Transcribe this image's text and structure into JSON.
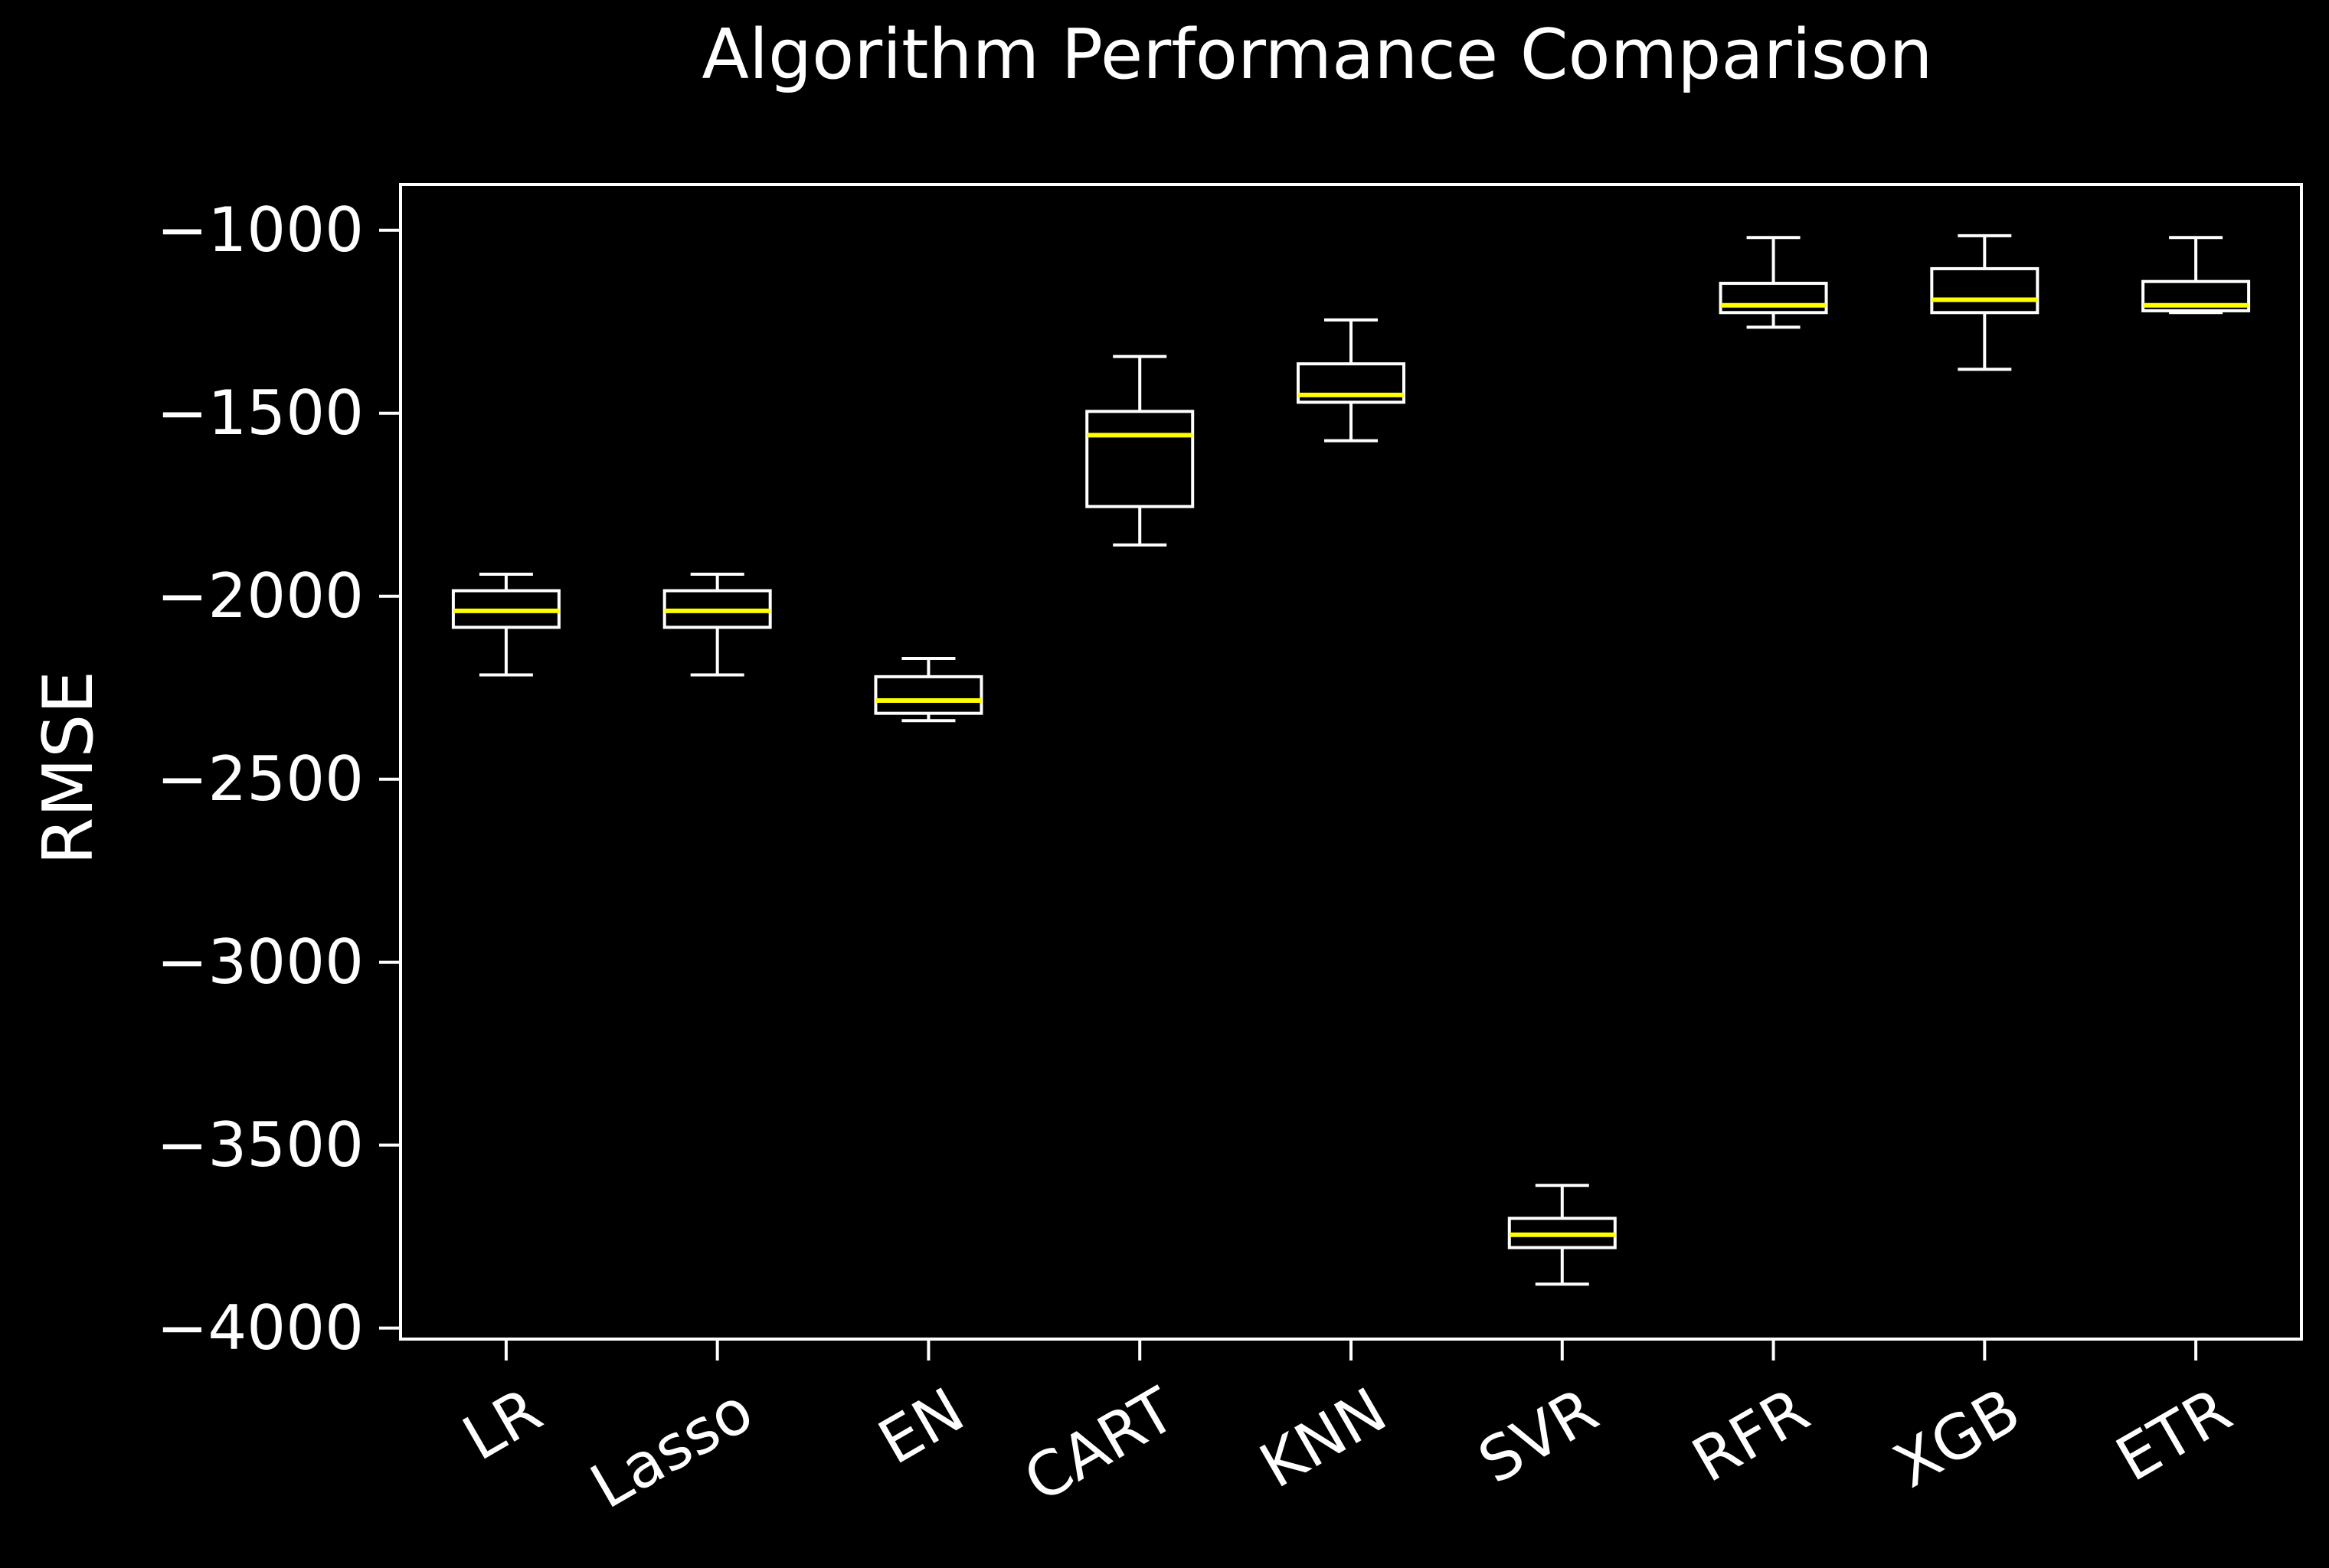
{
  "chart_data": {
    "type": "box",
    "title": "Algorithm Performance Comparison",
    "xlabel": "",
    "ylabel": "RMSE",
    "ylim": [
      -4030,
      -875
    ],
    "yticks": [
      -1000,
      -1500,
      -2000,
      -2500,
      -3000,
      -3500,
      -4000
    ],
    "ytick_labels": [
      "−1000",
      "−1500",
      "−2000",
      "−2500",
      "−3000",
      "−3500",
      "−4000"
    ],
    "categories": [
      "LR",
      "Lasso",
      "EN",
      "CART",
      "KNN",
      "SVR",
      "RFR",
      "XGB",
      "ETR"
    ],
    "boxes": [
      {
        "whisker_low": -2215,
        "q1": -2085,
        "median": -2040,
        "q3": -1985,
        "whisker_high": -1940
      },
      {
        "whisker_low": -2215,
        "q1": -2085,
        "median": -2040,
        "q3": -1985,
        "whisker_high": -1940
      },
      {
        "whisker_low": -2340,
        "q1": -2320,
        "median": -2285,
        "q3": -2220,
        "whisker_high": -2170
      },
      {
        "whisker_low": -1860,
        "q1": -1755,
        "median": -1560,
        "q3": -1495,
        "whisker_high": -1345
      },
      {
        "whisker_low": -1575,
        "q1": -1470,
        "median": -1450,
        "q3": -1365,
        "whisker_high": -1245
      },
      {
        "whisker_low": -3880,
        "q1": -3780,
        "median": -3745,
        "q3": -3700,
        "whisker_high": -3610
      },
      {
        "whisker_low": -1265,
        "q1": -1225,
        "median": -1205,
        "q3": -1145,
        "whisker_high": -1020
      },
      {
        "whisker_low": -1380,
        "q1": -1225,
        "median": -1190,
        "q3": -1105,
        "whisker_high": -1015
      },
      {
        "whisker_low": -1225,
        "q1": -1220,
        "median": -1205,
        "q3": -1140,
        "whisker_high": -1020
      }
    ],
    "grid": false,
    "colors": {
      "background": "#000000",
      "axes": "#ffffff",
      "box": "#ffffff",
      "median": "#ffff00",
      "text": "#ffffff"
    }
  }
}
